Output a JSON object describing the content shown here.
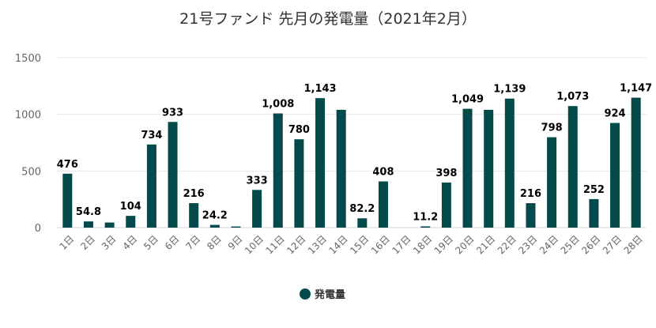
{
  "chart_data": {
    "type": "bar",
    "title": "21号ファンド 先月の発電量（2021年2月）",
    "categories": [
      "1日",
      "2日",
      "3日",
      "4日",
      "5日",
      "6日",
      "7日",
      "8日",
      "9日",
      "10日",
      "11日",
      "12日",
      "13日",
      "14日",
      "15日",
      "16日",
      "17日",
      "18日",
      "19日",
      "20日",
      "21日",
      "22日",
      "23日",
      "24日",
      "25日",
      "26日",
      "27日",
      "28日"
    ],
    "series": [
      {
        "name": "発電量",
        "color": "#054a4a",
        "values": [
          476,
          54.8,
          45,
          104,
          734,
          933,
          216,
          24.2,
          10,
          333,
          1008,
          780,
          1143,
          1040,
          82.2,
          408,
          0,
          11.2,
          398,
          1049,
          1040,
          1139,
          216,
          798,
          1073,
          252,
          924,
          1147
        ],
        "labels": [
          "476",
          "54.8",
          "",
          "104",
          "734",
          "933",
          "216",
          "24.2",
          "",
          "333",
          "1,008",
          "780",
          "1,143",
          "",
          "82.2",
          "408",
          "",
          "11.2",
          "398",
          "1,049",
          "",
          "1,139",
          "216",
          "798",
          "1,073",
          "252",
          "924",
          "1,147"
        ]
      }
    ],
    "yticks": [
      "0",
      "500",
      "1000",
      "1500"
    ],
    "ylim": [
      0,
      1500
    ],
    "grid": true,
    "legend": "bottom-center"
  }
}
